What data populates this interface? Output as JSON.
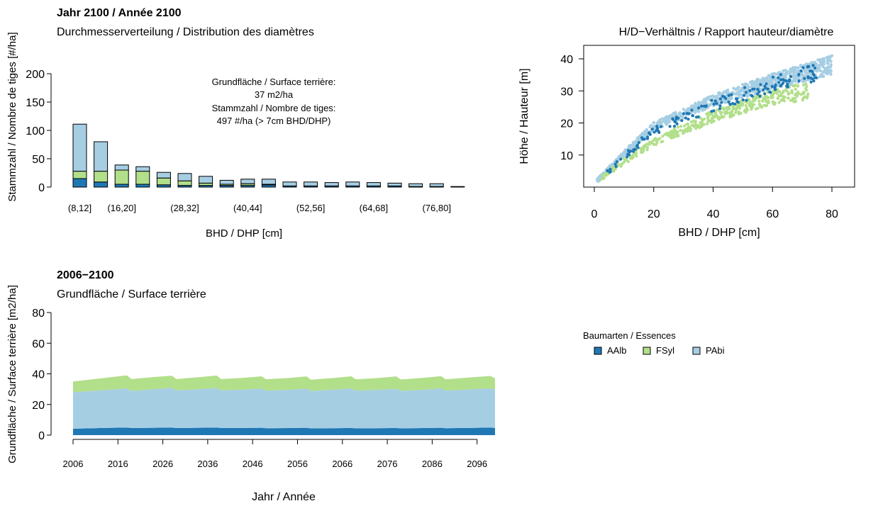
{
  "colors": {
    "AAlb": "#1f78b4",
    "FSyl": "#b2df8a",
    "PAbi": "#a6cee3"
  },
  "chart_data": [
    {
      "type": "bar",
      "stacked": true,
      "title": "Jahr 2100 / Année 2100",
      "subtitle": "Durchmesserverteilung / Distribution des diamètres",
      "xlabel": "BHD / DHP [cm]",
      "ylabel": "Stammzahl / Nombre de tiges [#/ha]",
      "ylim": [
        0,
        200
      ],
      "yticks": [
        "0",
        "50",
        "100",
        "150",
        "200"
      ],
      "categories": [
        "(8,12]",
        "(12,16]",
        "(16,20]",
        "(20,24]",
        "(24,28]",
        "(28,32]",
        "(32,36]",
        "(36,40]",
        "(40,44]",
        "(44,48]",
        "(48,52]",
        "(52,56]",
        "(56,60]",
        "(60,64]",
        "(64,68]",
        "(68,72]",
        "(72,76]",
        "(76,80]",
        "(80,84]"
      ],
      "shown_tick_labels": [
        "(8,12]",
        "(16,20]",
        "(28,32]",
        "(40,44]",
        "(52,56]",
        "(64,68]",
        "(76,80]"
      ],
      "series": [
        {
          "name": "AAlb",
          "values": [
            15,
            9,
            5,
            5,
            4,
            3,
            3,
            3,
            3,
            4,
            2,
            2,
            2,
            2,
            2,
            2,
            1,
            1,
            1
          ]
        },
        {
          "name": "FSyl",
          "values": [
            13,
            19,
            25,
            23,
            12,
            8,
            4,
            2,
            3,
            1,
            0,
            0,
            0,
            0,
            0,
            0,
            0,
            0,
            0
          ]
        },
        {
          "name": "PAbi",
          "values": [
            83,
            52,
            9,
            8,
            10,
            13,
            12,
            7,
            8,
            9,
            7,
            7,
            6,
            7,
            6,
            5,
            5,
            5,
            0
          ]
        }
      ],
      "annotation": [
        "Grundfläche / Surface terrière:",
        "37 m2/ha",
        "Stammzahl / Nombre de tiges:",
        "497 #/ha (> 7cm BHD/DHP)"
      ]
    },
    {
      "type": "scatter",
      "title": "H/D−Verhältnis / Rapport hauteur/diamètre",
      "xlabel": "BHD / DHP [cm]",
      "ylabel": "Höhe / Hauteur [m]",
      "xlim": [
        0,
        80
      ],
      "ylim": [
        0,
        40
      ],
      "xticks": [
        "0",
        "20",
        "40",
        "60",
        "80"
      ],
      "yticks": [
        "10",
        "20",
        "30",
        "40"
      ],
      "series": [
        {
          "name": "PAbi",
          "relation": {
            "h_at_d": [
              [
                1,
                2
              ],
              [
                10,
                10.5
              ],
              [
                20,
                19
              ],
              [
                40,
                27
              ],
              [
                60,
                33
              ],
              [
                80,
                38
              ]
            ],
            "d_range": [
              1,
              80
            ]
          }
        },
        {
          "name": "FSyl",
          "relation": {
            "h_at_d": [
              [
                2,
                2.5
              ],
              [
                10,
                8
              ],
              [
                20,
                14
              ],
              [
                40,
                22
              ],
              [
                60,
                28
              ],
              [
                72,
                30
              ]
            ],
            "d_range": [
              2,
              72
            ]
          }
        },
        {
          "name": "AAlb",
          "relation": {
            "h_at_d": [
              [
                2,
                2.5
              ],
              [
                10,
                9.5
              ],
              [
                20,
                17.5
              ],
              [
                40,
                25.5
              ],
              [
                60,
                32
              ],
              [
                76,
                36
              ]
            ],
            "d_range": [
              2,
              76
            ]
          }
        }
      ]
    },
    {
      "type": "area",
      "stacked": true,
      "title": "2006−2100",
      "subtitle": "Grundfläche / Surface terrière",
      "xlabel": "Jahr / Année",
      "ylabel": "Grundfläche / Surface terrière [m2/ha]",
      "xlim": [
        2006,
        2100
      ],
      "ylim": [
        0,
        80
      ],
      "yticks": [
        "0",
        "20",
        "40",
        "60",
        "80"
      ],
      "xticks": [
        "2006",
        "2016",
        "2026",
        "2036",
        "2046",
        "2056",
        "2066",
        "2076",
        "2086",
        "2096"
      ],
      "x": [
        2006,
        2012,
        2018,
        2019,
        2024,
        2028,
        2029,
        2034,
        2038,
        2039,
        2044,
        2048,
        2049,
        2054,
        2058,
        2059,
        2064,
        2068,
        2069,
        2074,
        2078,
        2079,
        2084,
        2088,
        2089,
        2094,
        2099,
        2100
      ],
      "series": [
        {
          "name": "AAlb",
          "values": [
            4.2,
            4.6,
            5.0,
            4.6,
            4.8,
            5.0,
            4.6,
            4.8,
            5.0,
            4.6,
            4.7,
            4.8,
            4.5,
            4.6,
            4.8,
            4.4,
            4.5,
            4.7,
            4.4,
            4.5,
            4.7,
            4.4,
            4.6,
            4.8,
            4.5,
            4.7,
            5.0,
            4.6
          ]
        },
        {
          "name": "PAbi",
          "values": [
            23.8,
            24.6,
            25.5,
            24.2,
            25.2,
            25.8,
            24.6,
            25.2,
            25.8,
            24.6,
            25.0,
            25.6,
            24.5,
            25.0,
            25.5,
            24.4,
            25.2,
            25.8,
            24.6,
            25.1,
            25.6,
            24.5,
            25.0,
            25.7,
            24.5,
            25.1,
            25.6,
            25.0
          ]
        },
        {
          "name": "FSyl",
          "values": [
            7.0,
            7.8,
            8.5,
            7.8,
            7.9,
            8.0,
            7.4,
            7.8,
            8.1,
            7.4,
            7.7,
            8.0,
            7.5,
            7.7,
            8.0,
            7.4,
            7.6,
            7.9,
            7.4,
            7.7,
            8.0,
            7.4,
            7.8,
            8.0,
            7.4,
            7.8,
            8.0,
            7.4
          ]
        }
      ]
    }
  ],
  "legend": {
    "title": "Baumarten / Essences",
    "items": [
      "AAlb",
      "FSyl",
      "PAbi"
    ]
  }
}
